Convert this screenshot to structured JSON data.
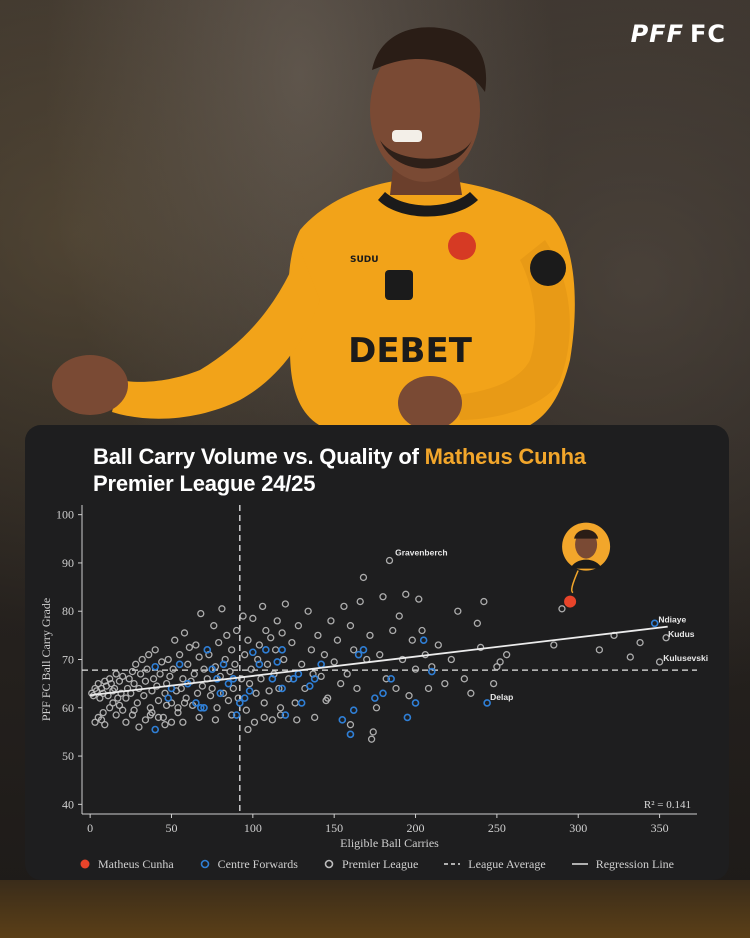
{
  "brand": {
    "logo_main": "PFF",
    "logo_sub": "FC"
  },
  "jersey": {
    "sponsor": "DEBET",
    "kit_maker": "SUDU"
  },
  "title": {
    "line1_prefix": "Ball Carry Volume vs. Quality of ",
    "line1_highlight": "Matheus Cunha",
    "line2": "Premier League 24/25"
  },
  "colors": {
    "highlight": "#f2a62b",
    "cunha": "#e8442a",
    "centre_forwards": "#2f7fd6",
    "premier_league": "#bdbdbd",
    "card": "#1e1e1f"
  },
  "legend": {
    "cunha": "Matheus Cunha",
    "cf": "Centre Forwards",
    "pl": "Premier League",
    "avg": "League Average",
    "reg": "Regression Line"
  },
  "chart_data": {
    "type": "scatter",
    "xlabel": "Eligible Ball Carries",
    "ylabel": "PFF FC Ball Carry Grade",
    "xlim": [
      -5,
      373
    ],
    "ylim": [
      38,
      102
    ],
    "x_ticks": [
      0,
      50,
      100,
      150,
      200,
      250,
      300,
      350
    ],
    "y_ticks": [
      40,
      50,
      60,
      70,
      80,
      90,
      100
    ],
    "league_average": {
      "x": 92,
      "y": 67.8
    },
    "regression": {
      "x": [
        0,
        355
      ],
      "y": [
        62.6,
        76.8
      ]
    },
    "r2_label": "R² = 0.141",
    "highlight_point": {
      "name": "Matheus Cunha",
      "x": 295,
      "y": 82
    },
    "annotations": [
      {
        "label": "Gravenberch",
        "x": 185,
        "y": 90.5
      },
      {
        "label": "Ndiaye",
        "x": 348,
        "y": 77.5
      },
      {
        "label": "Kudus",
        "x": 354,
        "y": 74.5
      },
      {
        "label": "Kulusevski",
        "x": 351,
        "y": 69.5
      },
      {
        "label": "Delap",
        "x": 244,
        "y": 61
      }
    ],
    "series": [
      {
        "name": "Centre Forwards",
        "points": [
          [
            40,
            55.5
          ],
          [
            40,
            68.5
          ],
          [
            48,
            62
          ],
          [
            50,
            64
          ],
          [
            55,
            69
          ],
          [
            60,
            65
          ],
          [
            65,
            61
          ],
          [
            68,
            60
          ],
          [
            70,
            60
          ],
          [
            72,
            72
          ],
          [
            75,
            68
          ],
          [
            78,
            66
          ],
          [
            80,
            63
          ],
          [
            82,
            69
          ],
          [
            85,
            65
          ],
          [
            88,
            66
          ],
          [
            90,
            58.5
          ],
          [
            92,
            61
          ],
          [
            95,
            62
          ],
          [
            98,
            63.5
          ],
          [
            100,
            71.5
          ],
          [
            104,
            69
          ],
          [
            108,
            72
          ],
          [
            112,
            66
          ],
          [
            115,
            69.5
          ],
          [
            118,
            64
          ],
          [
            118,
            72
          ],
          [
            120,
            58.5
          ],
          [
            125,
            66
          ],
          [
            128,
            67
          ],
          [
            130,
            61
          ],
          [
            135,
            64.5
          ],
          [
            138,
            66
          ],
          [
            142,
            69
          ],
          [
            155,
            57.5
          ],
          [
            160,
            54.5
          ],
          [
            162,
            59.5
          ],
          [
            165,
            71
          ],
          [
            168,
            72
          ],
          [
            175,
            62
          ],
          [
            180,
            63
          ],
          [
            185,
            66
          ],
          [
            195,
            58
          ],
          [
            200,
            61
          ],
          [
            205,
            74
          ],
          [
            210,
            67.5
          ],
          [
            244,
            61
          ],
          [
            347,
            77.5
          ]
        ]
      },
      {
        "name": "Premier League",
        "points": [
          [
            1,
            63
          ],
          [
            2,
            62.5
          ],
          [
            3,
            64
          ],
          [
            4,
            63.5
          ],
          [
            5,
            65
          ],
          [
            6,
            62
          ],
          [
            7,
            64
          ],
          [
            8,
            63
          ],
          [
            9,
            65.5
          ],
          [
            10,
            64.5
          ],
          [
            11,
            62.5
          ],
          [
            12,
            66
          ],
          [
            13,
            65
          ],
          [
            14,
            63.5
          ],
          [
            15,
            64
          ],
          [
            16,
            67
          ],
          [
            17,
            62
          ],
          [
            18,
            65.5
          ],
          [
            19,
            63
          ],
          [
            20,
            66.5
          ],
          [
            3,
            57
          ],
          [
            5,
            58
          ],
          [
            7,
            57.5
          ],
          [
            8,
            59
          ],
          [
            9,
            56.5
          ],
          [
            12,
            60
          ],
          [
            14,
            61
          ],
          [
            16,
            58.5
          ],
          [
            18,
            60.5
          ],
          [
            20,
            59.5
          ],
          [
            22,
            62
          ],
          [
            23,
            64
          ],
          [
            24,
            66
          ],
          [
            25,
            63
          ],
          [
            26,
            67.5
          ],
          [
            27,
            65
          ],
          [
            28,
            69
          ],
          [
            29,
            61
          ],
          [
            30,
            64
          ],
          [
            31,
            67
          ],
          [
            32,
            70
          ],
          [
            33,
            62.5
          ],
          [
            34,
            65.5
          ],
          [
            35,
            68
          ],
          [
            36,
            71
          ],
          [
            37,
            60
          ],
          [
            38,
            63.5
          ],
          [
            39,
            66
          ],
          [
            40,
            72
          ],
          [
            41,
            64.5
          ],
          [
            42,
            61.5
          ],
          [
            43,
            67
          ],
          [
            44,
            69.5
          ],
          [
            45,
            58
          ],
          [
            46,
            63
          ],
          [
            47,
            65
          ],
          [
            48,
            70
          ],
          [
            49,
            66.5
          ],
          [
            50,
            61
          ],
          [
            51,
            68
          ],
          [
            52,
            74
          ],
          [
            53,
            63.5
          ],
          [
            54,
            59
          ],
          [
            55,
            71
          ],
          [
            56,
            64
          ],
          [
            57,
            66
          ],
          [
            58,
            75.5
          ],
          [
            59,
            62
          ],
          [
            60,
            69
          ],
          [
            61,
            72.5
          ],
          [
            62,
            65.5
          ],
          [
            63,
            60.5
          ],
          [
            64,
            67
          ],
          [
            65,
            73
          ],
          [
            66,
            63
          ],
          [
            67,
            70.5
          ],
          [
            68,
            79.5
          ],
          [
            69,
            64.5
          ],
          [
            70,
            68
          ],
          [
            22,
            57
          ],
          [
            26,
            58.5
          ],
          [
            30,
            56
          ],
          [
            34,
            57.5
          ],
          [
            38,
            59
          ],
          [
            42,
            58
          ],
          [
            46,
            56.5
          ],
          [
            50,
            57
          ],
          [
            54,
            60
          ],
          [
            58,
            61
          ],
          [
            72,
            66
          ],
          [
            73,
            71
          ],
          [
            74,
            62.5
          ],
          [
            75,
            64
          ],
          [
            76,
            77
          ],
          [
            77,
            68.5
          ],
          [
            78,
            60
          ],
          [
            79,
            73.5
          ],
          [
            80,
            66.5
          ],
          [
            81,
            80.5
          ],
          [
            82,
            63
          ],
          [
            83,
            70
          ],
          [
            84,
            75
          ],
          [
            85,
            61.5
          ],
          [
            86,
            67.5
          ],
          [
            87,
            72
          ],
          [
            88,
            64
          ],
          [
            89,
            69
          ],
          [
            90,
            76
          ],
          [
            91,
            62
          ],
          [
            93,
            66
          ],
          [
            94,
            79
          ],
          [
            95,
            71
          ],
          [
            96,
            59.5
          ],
          [
            97,
            74
          ],
          [
            98,
            65
          ],
          [
            99,
            68
          ],
          [
            100,
            78.5
          ],
          [
            101,
            57
          ],
          [
            102,
            63
          ],
          [
            103,
            70
          ],
          [
            104,
            73
          ],
          [
            105,
            66
          ],
          [
            106,
            81
          ],
          [
            107,
            61
          ],
          [
            108,
            76
          ],
          [
            109,
            69
          ],
          [
            110,
            63.5
          ],
          [
            111,
            74.5
          ],
          [
            112,
            57.5
          ],
          [
            113,
            67
          ],
          [
            114,
            72
          ],
          [
            115,
            78
          ],
          [
            116,
            64
          ],
          [
            117,
            60
          ],
          [
            118,
            75.5
          ],
          [
            119,
            70
          ],
          [
            120,
            81.5
          ],
          [
            122,
            66
          ],
          [
            124,
            73.5
          ],
          [
            126,
            61
          ],
          [
            128,
            77
          ],
          [
            130,
            69
          ],
          [
            132,
            64
          ],
          [
            134,
            80
          ],
          [
            136,
            72
          ],
          [
            138,
            58
          ],
          [
            140,
            75
          ],
          [
            142,
            66.5
          ],
          [
            144,
            71
          ],
          [
            146,
            62
          ],
          [
            148,
            78
          ],
          [
            150,
            69.5
          ],
          [
            152,
            74
          ],
          [
            154,
            65
          ],
          [
            156,
            81
          ],
          [
            158,
            67
          ],
          [
            160,
            77
          ],
          [
            162,
            72
          ],
          [
            164,
            64
          ],
          [
            166,
            82
          ],
          [
            168,
            87
          ],
          [
            170,
            70
          ],
          [
            172,
            75
          ],
          [
            174,
            55
          ],
          [
            176,
            60
          ],
          [
            178,
            71
          ],
          [
            180,
            83
          ],
          [
            182,
            66
          ],
          [
            184,
            90.5
          ],
          [
            186,
            76
          ],
          [
            188,
            64
          ],
          [
            190,
            79
          ],
          [
            192,
            70
          ],
          [
            194,
            83.5
          ],
          [
            196,
            62.5
          ],
          [
            198,
            74
          ],
          [
            200,
            68
          ],
          [
            202,
            82.5
          ],
          [
            204,
            76
          ],
          [
            206,
            71
          ],
          [
            208,
            64
          ],
          [
            210,
            68.5
          ],
          [
            214,
            73
          ],
          [
            218,
            65
          ],
          [
            222,
            70
          ],
          [
            226,
            80
          ],
          [
            230,
            66
          ],
          [
            234,
            63
          ],
          [
            238,
            77.5
          ],
          [
            240,
            72.5
          ],
          [
            242,
            82
          ],
          [
            248,
            65
          ],
          [
            250,
            68.5
          ],
          [
            252,
            69.5
          ],
          [
            256,
            71
          ],
          [
            285,
            73
          ],
          [
            290,
            80.5
          ],
          [
            313,
            72
          ],
          [
            322,
            75
          ],
          [
            332,
            70.5
          ],
          [
            338,
            73.5
          ],
          [
            350,
            69.5
          ],
          [
            354,
            74.5
          ],
          [
            173,
            53.5
          ],
          [
            160,
            56.5
          ],
          [
            145,
            61.5
          ],
          [
            137,
            67
          ],
          [
            127,
            57.5
          ],
          [
            117,
            58.5
          ],
          [
            107,
            58
          ],
          [
            97,
            55.5
          ],
          [
            87,
            58.5
          ],
          [
            77,
            57.5
          ],
          [
            67,
            58
          ],
          [
            57,
            57
          ],
          [
            47,
            60.5
          ],
          [
            37,
            58.5
          ],
          [
            27,
            59.5
          ]
        ]
      }
    ]
  }
}
